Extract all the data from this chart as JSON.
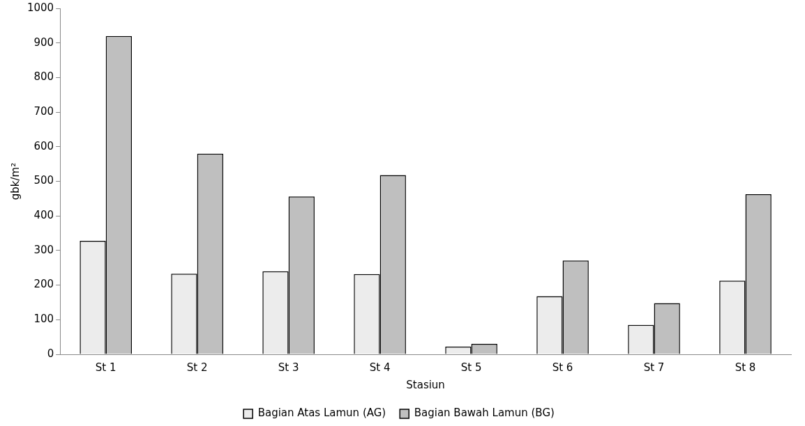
{
  "chart_data": {
    "type": "bar",
    "xlabel": "Stasiun",
    "ylabel": "gbk/m²",
    "categories": [
      "St 1",
      "St 2",
      "St 3",
      "St 4",
      "St 5",
      "St 6",
      "St 7",
      "St 8"
    ],
    "series": [
      {
        "name": "Bagian Atas Lamun (AG)",
        "color": "#ececec",
        "values": [
          328,
          233,
          240,
          232,
          22,
          168,
          85,
          213
        ]
      },
      {
        "name": "Bagian Bawah Lamun (BG)",
        "color": "#bfbfbf",
        "values": [
          920,
          580,
          456,
          518,
          30,
          271,
          148,
          463
        ]
      }
    ],
    "ylim": [
      0,
      1000
    ],
    "yticks": [
      0,
      100,
      200,
      300,
      400,
      500,
      600,
      700,
      800,
      900,
      1000
    ],
    "grid": false,
    "legend": "bottom"
  }
}
